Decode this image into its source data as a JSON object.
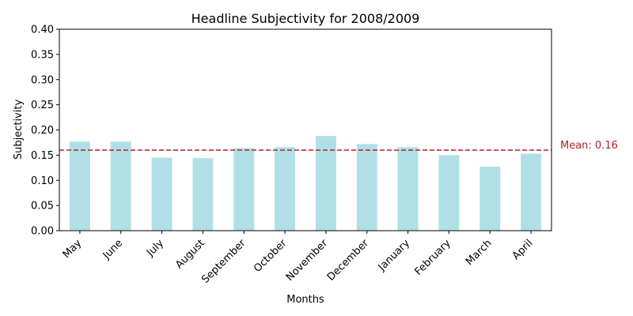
{
  "chart_data": {
    "type": "bar",
    "title": "Headline Subjectivity for 2008/2009",
    "xlabel": "Months",
    "ylabel": "Subjectivity",
    "categories": [
      "May",
      "June",
      "July",
      "August",
      "September",
      "October",
      "November",
      "December",
      "January",
      "February",
      "March",
      "April"
    ],
    "values": [
      0.177,
      0.177,
      0.145,
      0.144,
      0.164,
      0.166,
      0.188,
      0.172,
      0.166,
      0.15,
      0.127,
      0.153
    ],
    "ylim": [
      0,
      0.4
    ],
    "yticks": [
      "0.00",
      "0.05",
      "0.10",
      "0.15",
      "0.20",
      "0.25",
      "0.30",
      "0.35",
      "0.40"
    ],
    "grid": false,
    "bar_color": "#b0e0e6",
    "mean_line": {
      "value": 0.16,
      "label": "Mean: 0.16",
      "color": "#b22222",
      "style": "dashed"
    }
  }
}
